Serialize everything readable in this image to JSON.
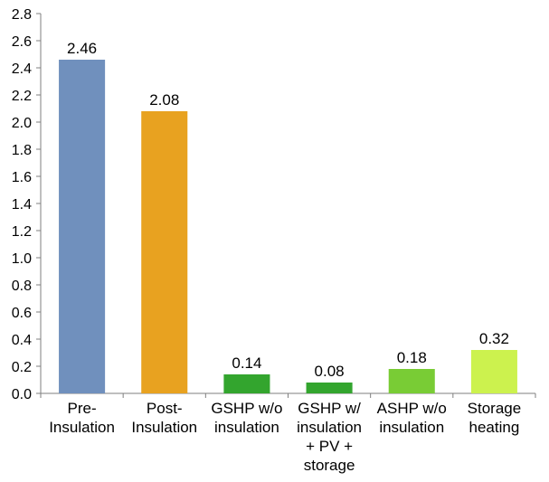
{
  "chart_data": {
    "type": "bar",
    "title": "",
    "xlabel": "",
    "ylabel": "",
    "ylim": [
      0,
      2.8
    ],
    "yticks": [
      "0.0",
      "0.2",
      "0.4",
      "0.6",
      "0.8",
      "1.0",
      "1.2",
      "1.4",
      "1.6",
      "1.8",
      "2.0",
      "2.2",
      "2.4",
      "2.6",
      "2.8"
    ],
    "grid": false,
    "legend": "none",
    "categories": [
      [
        "Pre-",
        "Insulation"
      ],
      [
        "Post-",
        "Insulation"
      ],
      [
        "GSHP w/o",
        "insulation"
      ],
      [
        "GSHP w/",
        "insulation",
        "+ PV +",
        "storage"
      ],
      [
        "ASHP w/o",
        "insulation"
      ],
      [
        "Storage",
        "heating"
      ]
    ],
    "values": [
      2.46,
      2.08,
      0.14,
      0.08,
      0.18,
      0.32
    ],
    "value_labels": [
      "2.46",
      "2.08",
      "0.14",
      "0.08",
      "0.18",
      "0.32"
    ],
    "colors": [
      "#7090bd",
      "#e8a220",
      "#33a52e",
      "#33a52e",
      "#79cc35",
      "#ccf24e"
    ]
  }
}
